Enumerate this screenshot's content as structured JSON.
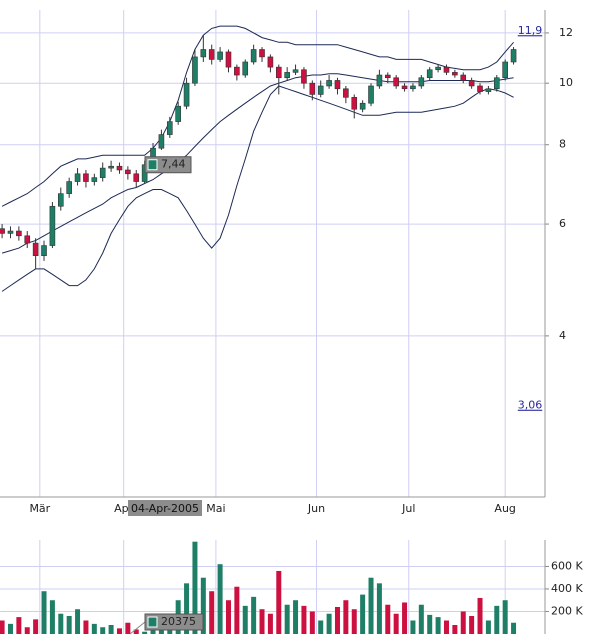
{
  "chart_data": [
    {
      "type": "candlestick",
      "log": true,
      "grid": true,
      "up_color": "#1e7f66",
      "down_color": "#cc1040",
      "x": [
        0,
        2,
        4,
        6,
        8,
        10,
        12,
        14,
        16,
        18,
        20,
        22,
        24,
        26,
        28,
        30,
        32,
        34,
        36,
        38,
        40,
        42,
        44,
        46,
        48,
        50,
        52,
        54,
        56,
        58,
        60,
        62,
        64,
        66,
        68,
        70,
        72,
        74,
        76,
        78,
        80,
        82,
        84,
        86,
        88,
        90,
        92,
        94,
        96,
        98,
        100,
        102,
        104,
        106,
        108,
        110,
        112,
        114,
        116,
        118,
        120,
        122
      ],
      "open": [
        5.9,
        5.8,
        5.85,
        5.75,
        5.6,
        5.35,
        5.55,
        6.4,
        6.7,
        7.0,
        7.2,
        7.0,
        7.1,
        7.35,
        7.4,
        7.3,
        7.2,
        7.0,
        7.44,
        7.9,
        8.3,
        8.7,
        9.2,
        10.0,
        11.0,
        11.3,
        10.9,
        11.2,
        10.6,
        10.3,
        10.8,
        11.3,
        11.0,
        10.6,
        10.2,
        10.4,
        10.5,
        10.0,
        9.6,
        9.9,
        10.1,
        9.8,
        9.5,
        9.1,
        9.3,
        9.9,
        10.3,
        10.2,
        9.9,
        9.8,
        9.9,
        10.2,
        10.5,
        10.6,
        10.4,
        10.3,
        10.1,
        9.9,
        9.7,
        9.8,
        10.2,
        10.8
      ],
      "high": [
        6.0,
        5.95,
        5.95,
        5.85,
        5.7,
        5.65,
        6.5,
        6.85,
        7.1,
        7.35,
        7.3,
        7.2,
        7.5,
        7.55,
        7.5,
        7.4,
        7.3,
        7.55,
        8.05,
        8.45,
        8.85,
        9.35,
        10.2,
        11.3,
        11.9,
        11.5,
        11.4,
        11.3,
        10.7,
        10.9,
        11.5,
        11.4,
        11.1,
        10.7,
        10.6,
        10.7,
        10.6,
        10.1,
        10.1,
        10.3,
        10.2,
        9.9,
        9.6,
        9.4,
        10.0,
        10.5,
        10.4,
        10.3,
        10.0,
        10.0,
        10.3,
        10.6,
        10.7,
        10.7,
        10.5,
        10.4,
        10.2,
        10.0,
        9.9,
        10.3,
        10.9,
        11.4
      ],
      "low": [
        5.7,
        5.7,
        5.65,
        5.5,
        5.1,
        5.25,
        5.5,
        6.3,
        6.6,
        6.9,
        6.85,
        6.9,
        7.0,
        7.25,
        7.2,
        7.05,
        6.85,
        6.95,
        7.4,
        7.85,
        8.2,
        8.6,
        9.1,
        9.9,
        10.8,
        10.7,
        10.8,
        10.4,
        10.1,
        10.2,
        10.7,
        10.8,
        10.4,
        9.6,
        10.1,
        10.3,
        9.8,
        9.4,
        9.5,
        9.8,
        9.6,
        9.3,
        8.8,
        9.0,
        9.2,
        9.8,
        10.0,
        9.8,
        9.7,
        9.7,
        9.8,
        10.1,
        10.4,
        10.3,
        10.2,
        10.0,
        9.8,
        9.6,
        9.6,
        9.7,
        10.1,
        10.7
      ],
      "close": [
        5.8,
        5.85,
        5.75,
        5.6,
        5.35,
        5.55,
        6.4,
        6.7,
        7.0,
        7.2,
        7.0,
        7.1,
        7.35,
        7.4,
        7.3,
        7.2,
        7.0,
        7.44,
        7.9,
        8.3,
        8.7,
        9.2,
        10.0,
        11.0,
        11.3,
        10.9,
        11.2,
        10.6,
        10.3,
        10.8,
        11.3,
        11.0,
        10.6,
        10.2,
        10.4,
        10.5,
        10.0,
        9.6,
        9.9,
        10.1,
        9.8,
        9.5,
        9.1,
        9.3,
        9.9,
        10.3,
        10.2,
        9.9,
        9.8,
        9.9,
        10.2,
        10.5,
        10.6,
        10.4,
        10.3,
        10.1,
        9.9,
        9.7,
        9.8,
        10.2,
        10.8,
        11.3
      ],
      "series": [
        {
          "color": "#1c2a55",
          "values": [
            6.4,
            6.5,
            6.6,
            6.7,
            6.85,
            7.0,
            7.2,
            7.4,
            7.5,
            7.6,
            7.6,
            7.65,
            7.7,
            7.7,
            7.7,
            7.7,
            7.7,
            7.7,
            7.9,
            8.2,
            8.7,
            9.4,
            10.4,
            11.3,
            11.9,
            12.2,
            12.3,
            12.3,
            12.3,
            12.2,
            12.0,
            11.8,
            11.7,
            11.6,
            11.6,
            11.5,
            11.5,
            11.5,
            11.5,
            11.5,
            11.5,
            11.4,
            11.3,
            11.2,
            11.1,
            11.0,
            11.0,
            10.9,
            10.9,
            10.9,
            10.9,
            10.8,
            10.7,
            10.6,
            10.55,
            10.5,
            10.5,
            10.5,
            10.6,
            10.8,
            11.2,
            11.6
          ]
        },
        {
          "color": "#1c2a55",
          "values": [
            5.4,
            5.45,
            5.5,
            5.6,
            5.65,
            5.75,
            5.85,
            5.95,
            6.05,
            6.15,
            6.25,
            6.35,
            6.45,
            6.6,
            6.7,
            6.8,
            6.85,
            6.95,
            7.05,
            7.2,
            7.35,
            7.5,
            7.7,
            7.95,
            8.2,
            8.45,
            8.7,
            8.9,
            9.1,
            9.3,
            9.5,
            9.7,
            9.9,
            10.0,
            10.1,
            10.2,
            10.25,
            10.3,
            10.3,
            10.35,
            10.35,
            10.3,
            10.25,
            10.2,
            10.15,
            10.1,
            10.05,
            10.05,
            10.05,
            10.05,
            10.05,
            10.1,
            10.1,
            10.1,
            10.1,
            10.1,
            10.1,
            10.05,
            10.05,
            10.1,
            10.15,
            10.2
          ]
        },
        {
          "color": "#1c2a55",
          "values": [
            4.7,
            4.8,
            4.9,
            5.0,
            5.1,
            5.1,
            5.0,
            4.9,
            4.8,
            4.8,
            4.9,
            5.1,
            5.4,
            5.8,
            6.1,
            6.4,
            6.6,
            6.7,
            6.8,
            6.8,
            6.7,
            6.6,
            6.3,
            6.0,
            5.7,
            5.5,
            5.7,
            6.2,
            6.9,
            7.6,
            8.4,
            9.0,
            9.6,
            9.9,
            9.8,
            9.7,
            9.6,
            9.5,
            9.4,
            9.3,
            9.2,
            9.1,
            9.0,
            8.9,
            8.9,
            8.9,
            8.95,
            9.0,
            9.0,
            9.0,
            9.0,
            9.05,
            9.1,
            9.15,
            9.2,
            9.3,
            9.5,
            9.7,
            9.8,
            9.75,
            9.65,
            9.5
          ]
        }
      ],
      "xlim": [
        -0.5,
        129.5
      ],
      "xticks": [
        {
          "value": 9,
          "label": "Mär"
        },
        {
          "value": 29,
          "label": "Apr"
        },
        {
          "value": 51,
          "label": "Mai"
        },
        {
          "value": 75,
          "label": "Jun"
        },
        {
          "value": 97,
          "label": "Jul"
        },
        {
          "value": 120,
          "label": "Aug"
        }
      ],
      "ylim": [
        2.23,
        13.04
      ],
      "yticks": [
        4,
        6,
        8,
        10,
        12
      ],
      "annotations": [
        {
          "text": "11,9",
          "value": 11.9
        },
        {
          "text": "3,06",
          "value": 3.06
        },
        {
          "text": "7,44",
          "value": 7.44
        }
      ],
      "crosshair_date": "04-Apr-2005"
    },
    {
      "type": "bar",
      "up_color": "#1e7f66",
      "down_color": "#cc1040",
      "values": [
        120000,
        90000,
        150000,
        60000,
        130000,
        380000,
        300000,
        180000,
        160000,
        220000,
        120000,
        90000,
        60000,
        80000,
        50000,
        100000,
        40000,
        20375,
        120000,
        160000,
        100000,
        300000,
        450000,
        820000,
        500000,
        380000,
        620000,
        300000,
        420000,
        250000,
        330000,
        220000,
        180000,
        560000,
        260000,
        300000,
        250000,
        200000,
        120000,
        180000,
        240000,
        300000,
        220000,
        350000,
        500000,
        450000,
        260000,
        180000,
        280000,
        120000,
        260000,
        170000,
        150000,
        120000,
        80000,
        200000,
        160000,
        320000,
        120000,
        250000,
        300000,
        100000
      ],
      "ylim": [
        0,
        835000
      ],
      "yticks": [
        {
          "value": 200000,
          "label": "200 K"
        },
        {
          "value": 400000,
          "label": "400 K"
        },
        {
          "value": 600000,
          "label": "600 K"
        }
      ],
      "annotations": [
        {
          "text": "20375",
          "value": 20375
        }
      ]
    }
  ]
}
